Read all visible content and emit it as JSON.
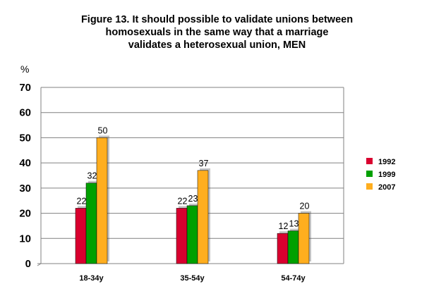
{
  "chart_data": {
    "type": "bar",
    "title_lines": [
      "Figure 13. It should possible to validate unions between",
      "homosexuals in the same way that a marriage",
      "validates a heterosexual union, MEN"
    ],
    "unit_label": "%",
    "categories": [
      "18-34y",
      "35-54y",
      "54-74y"
    ],
    "series": [
      {
        "name": "1992",
        "color": "#d9002f",
        "values": [
          22,
          22,
          12
        ]
      },
      {
        "name": "1999",
        "color": "#00a000",
        "values": [
          32,
          23,
          13
        ]
      },
      {
        "name": "2007",
        "color": "#ffae1f",
        "values": [
          50,
          37,
          20
        ]
      }
    ],
    "ylim": [
      0,
      70
    ],
    "yticks": [
      0,
      10,
      20,
      30,
      40,
      50,
      60,
      70
    ],
    "grid": true,
    "legend_position": "right"
  }
}
